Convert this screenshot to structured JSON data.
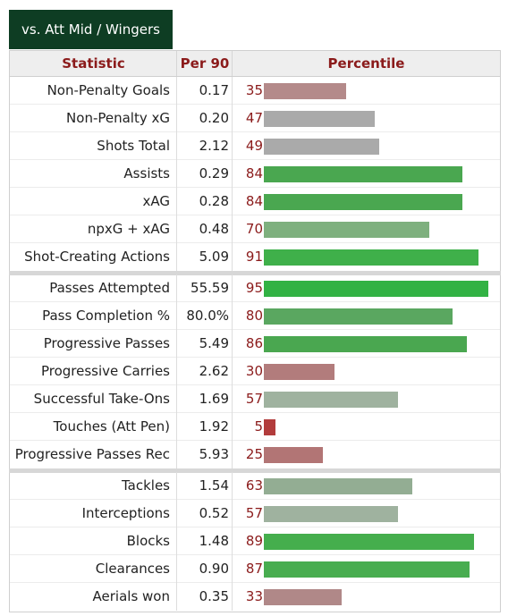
{
  "tab_label": "vs. Att Mid / Wingers",
  "headers": {
    "statistic": "Statistic",
    "per90": "Per 90",
    "percentile": "Percentile"
  },
  "groups": [
    [
      {
        "stat": "Non-Penalty Goals",
        "per90": "0.17",
        "pct": 35,
        "color": "#b48a8a"
      },
      {
        "stat": "Non-Penalty xG",
        "per90": "0.20",
        "pct": 47,
        "color": "#aaaaaa"
      },
      {
        "stat": "Shots Total",
        "per90": "2.12",
        "pct": 49,
        "color": "#aaaaaa"
      },
      {
        "stat": "Assists",
        "per90": "0.29",
        "pct": 84,
        "color": "#4aa750"
      },
      {
        "stat": "xAG",
        "per90": "0.28",
        "pct": 84,
        "color": "#4aa750"
      },
      {
        "stat": "npxG + xAG",
        "per90": "0.48",
        "pct": 70,
        "color": "#7eb07e"
      },
      {
        "stat": "Shot-Creating Actions",
        "per90": "5.09",
        "pct": 91,
        "color": "#3fb04a"
      }
    ],
    [
      {
        "stat": "Passes Attempted",
        "per90": "55.59",
        "pct": 95,
        "color": "#32b244"
      },
      {
        "stat": "Pass Completion %",
        "per90": "80.0%",
        "pct": 80,
        "color": "#5aa760"
      },
      {
        "stat": "Progressive Passes",
        "per90": "5.49",
        "pct": 86,
        "color": "#4aa750"
      },
      {
        "stat": "Progressive Carries",
        "per90": "2.62",
        "pct": 30,
        "color": "#b27c7c"
      },
      {
        "stat": "Successful Take-Ons",
        "per90": "1.69",
        "pct": 57,
        "color": "#9fb29f"
      },
      {
        "stat": "Touches (Att Pen)",
        "per90": "1.92",
        "pct": 5,
        "color": "#b23c3c"
      },
      {
        "stat": "Progressive Passes Rec",
        "per90": "5.93",
        "pct": 25,
        "color": "#b27575"
      }
    ],
    [
      {
        "stat": "Tackles",
        "per90": "1.54",
        "pct": 63,
        "color": "#93ad93"
      },
      {
        "stat": "Interceptions",
        "per90": "0.52",
        "pct": 57,
        "color": "#9fb29f"
      },
      {
        "stat": "Blocks",
        "per90": "1.48",
        "pct": 89,
        "color": "#45ae4d"
      },
      {
        "stat": "Clearances",
        "per90": "0.90",
        "pct": 87,
        "color": "#48ad50"
      },
      {
        "stat": "Aerials won",
        "per90": "0.35",
        "pct": 33,
        "color": "#b08888"
      }
    ]
  ],
  "colors": {
    "percentile_text": "#8b1b1b",
    "tab_bg": "#0e3d23"
  }
}
